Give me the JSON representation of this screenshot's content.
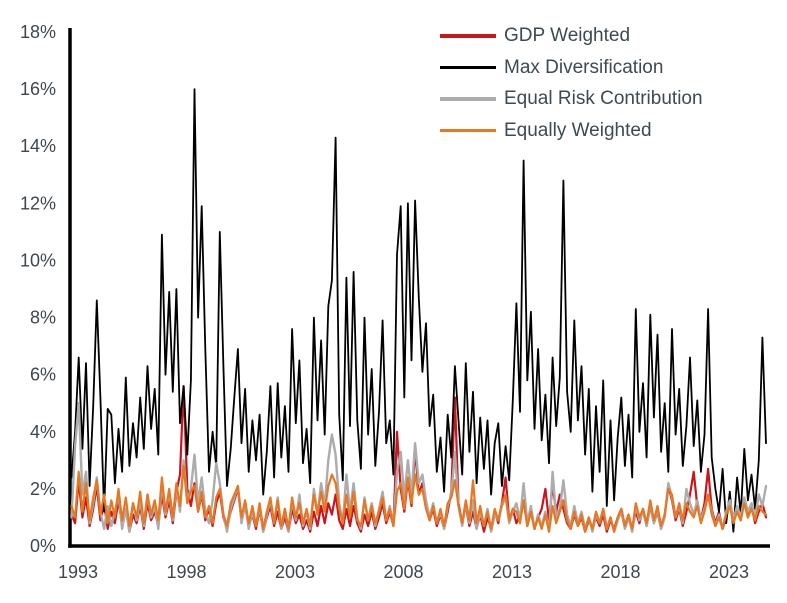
{
  "chart_data": {
    "type": "line",
    "title": "",
    "xlabel": "",
    "ylabel": "",
    "ylim": [
      0,
      18
    ],
    "y_unit": "%",
    "grid": false,
    "legend_position": "top-right",
    "y_tick_labels": [
      "0%",
      "2%",
      "4%",
      "6%",
      "8%",
      "10%",
      "12%",
      "14%",
      "16%",
      "18%"
    ],
    "y_tick_values": [
      0,
      2,
      4,
      6,
      8,
      10,
      12,
      14,
      16,
      18
    ],
    "x_tick_labels": [
      "1993",
      "1998",
      "2003",
      "2008",
      "2013",
      "2018",
      "2023"
    ],
    "x_tick_years": [
      1993,
      1998,
      2003,
      2008,
      2013,
      2018,
      2023
    ],
    "x_start_year": 1992.7,
    "x_end_year": 2024.7,
    "x_step_years": 0.1667,
    "points_per_series": 193,
    "series": [
      {
        "name": "GDP Weighted",
        "color": "#c9161d",
        "width": 2.2,
        "values": [
          1.1,
          0.8,
          2.3,
          1.0,
          1.7,
          0.7,
          1.3,
          2.1,
          0.9,
          1.5,
          0.6,
          1.2,
          0.8,
          1.6,
          0.7,
          1.3,
          0.5,
          1.1,
          0.8,
          1.4,
          0.6,
          1.5,
          0.9,
          1.2,
          0.7,
          1.8,
          1.0,
          1.6,
          0.8,
          1.9,
          2.5,
          5.6,
          2.0,
          1.4,
          2.2,
          1.2,
          1.8,
          0.9,
          1.3,
          0.7,
          1.5,
          1.9,
          1.0,
          0.6,
          1.2,
          1.6,
          2.0,
          0.9,
          1.4,
          0.7,
          1.1,
          0.6,
          1.3,
          0.5,
          1.0,
          1.4,
          0.7,
          1.2,
          0.6,
          1.0,
          0.5,
          1.3,
          0.8,
          1.1,
          0.6,
          0.9,
          0.5,
          1.2,
          0.7,
          1.4,
          0.8,
          1.5,
          1.1,
          1.8,
          0.9,
          0.6,
          1.3,
          0.7,
          1.4,
          0.8,
          0.5,
          1.1,
          0.7,
          1.2,
          0.6,
          1.0,
          1.5,
          0.8,
          1.2,
          0.7,
          4.0,
          2.0,
          1.2,
          2.3,
          1.4,
          3.4,
          1.8,
          2.2,
          1.5,
          0.9,
          1.3,
          0.7,
          1.1,
          0.6,
          1.2,
          1.9,
          5.2,
          1.5,
          0.8,
          1.4,
          0.7,
          1.2,
          0.6,
          1.1,
          0.5,
          1.0,
          0.6,
          1.2,
          0.8,
          1.5,
          2.4,
          0.9,
          1.3,
          0.8,
          1.1,
          1.6,
          0.7,
          1.2,
          0.6,
          1.0,
          1.3,
          2.0,
          0.9,
          2.1,
          1.2,
          1.8,
          1.3,
          0.8,
          0.6,
          1.1,
          0.7,
          1.0,
          0.5,
          0.9,
          0.6,
          1.0,
          0.7,
          1.1,
          0.5,
          0.9,
          0.6,
          1.0,
          1.3,
          0.7,
          1.1,
          0.6,
          1.2,
          0.8,
          1.3,
          0.7,
          1.4,
          0.8,
          1.2,
          0.6,
          1.1,
          2.1,
          1.6,
          0.9,
          1.3,
          0.7,
          1.2,
          1.8,
          2.6,
          1.4,
          0.9,
          1.5,
          2.7,
          1.3,
          0.8,
          1.2,
          0.6,
          1.0,
          1.5,
          0.8,
          1.3,
          0.9,
          1.6,
          1.0,
          1.4,
          0.8,
          1.2,
          1.5,
          1.0
        ]
      },
      {
        "name": "Max Diversification",
        "color": "#000000",
        "width": 1.8,
        "values": [
          2.4,
          4.0,
          6.6,
          3.4,
          6.4,
          2.1,
          4.9,
          8.6,
          5.2,
          1.2,
          4.8,
          4.6,
          2.2,
          4.1,
          2.6,
          5.9,
          2.8,
          4.3,
          3.1,
          5.2,
          3.4,
          6.3,
          4.1,
          5.5,
          3.2,
          10.9,
          6.0,
          8.9,
          5.4,
          9.0,
          4.3,
          5.6,
          3.2,
          5.8,
          16.0,
          8.0,
          11.9,
          6.9,
          2.6,
          4.0,
          2.8,
          11.0,
          6.3,
          2.1,
          3.4,
          5.2,
          6.9,
          3.6,
          5.5,
          2.6,
          4.4,
          3.0,
          4.6,
          1.8,
          3.3,
          5.6,
          2.4,
          5.7,
          3.1,
          4.9,
          2.6,
          7.6,
          4.3,
          6.5,
          2.9,
          4.1,
          2.2,
          8.0,
          4.4,
          7.2,
          3.9,
          8.4,
          9.3,
          14.3,
          4.6,
          2.3,
          9.4,
          4.2,
          9.6,
          4.4,
          2.7,
          8.0,
          3.9,
          6.2,
          2.8,
          4.7,
          7.9,
          3.6,
          4.4,
          2.5,
          10.2,
          11.9,
          5.2,
          12.0,
          6.5,
          12.1,
          8.7,
          6.1,
          7.8,
          4.2,
          5.3,
          2.6,
          3.8,
          1.9,
          4.6,
          3.1,
          6.3,
          4.4,
          2.5,
          6.4,
          3.3,
          5.4,
          2.2,
          4.5,
          2.7,
          4.4,
          1.8,
          3.6,
          4.3,
          2.1,
          3.5,
          2.3,
          5.1,
          8.5,
          4.7,
          13.5,
          5.8,
          8.2,
          4.1,
          6.9,
          3.7,
          5.3,
          2.9,
          6.6,
          4.2,
          5.9,
          12.8,
          5.4,
          4.0,
          7.9,
          4.4,
          6.3,
          3.2,
          5.5,
          1.9,
          4.9,
          2.6,
          5.8,
          1.4,
          4.4,
          1.6,
          3.8,
          5.2,
          2.8,
          4.6,
          2.4,
          8.3,
          4.0,
          5.7,
          3.1,
          8.1,
          4.5,
          7.4,
          3.3,
          5.0,
          2.6,
          7.6,
          3.9,
          5.5,
          2.8,
          4.2,
          6.6,
          3.5,
          5.1,
          2.6,
          3.9,
          8.3,
          3.1,
          2.0,
          1.2,
          2.7,
          0.8,
          1.9,
          0.5,
          2.4,
          1.1,
          3.4,
          1.6,
          2.5,
          1.3,
          3.0,
          7.3,
          3.6
        ]
      },
      {
        "name": "Equal Risk Contribution",
        "color": "#acacac",
        "width": 2.4,
        "values": [
          1.0,
          3.5,
          5.0,
          1.8,
          2.6,
          0.8,
          1.5,
          2.4,
          1.2,
          0.6,
          1.4,
          0.7,
          1.2,
          1.8,
          0.6,
          1.3,
          0.5,
          1.5,
          0.9,
          1.6,
          0.7,
          1.8,
          1.0,
          1.4,
          0.6,
          2.2,
          1.1,
          1.9,
          0.9,
          2.1,
          1.2,
          3.0,
          1.6,
          2.0,
          3.2,
          1.5,
          2.4,
          1.2,
          0.8,
          1.6,
          2.9,
          2.2,
          1.1,
          0.5,
          1.3,
          1.7,
          2.1,
          0.8,
          1.5,
          0.6,
          1.2,
          0.7,
          1.4,
          0.5,
          1.1,
          1.6,
          0.8,
          1.7,
          0.6,
          1.3,
          0.5,
          1.6,
          0.9,
          1.8,
          0.7,
          1.2,
          0.6,
          2.0,
          1.1,
          2.2,
          1.4,
          3.0,
          3.9,
          3.2,
          1.5,
          0.8,
          2.5,
          1.2,
          2.2,
          1.0,
          0.6,
          1.7,
          0.9,
          1.5,
          0.7,
          1.3,
          1.9,
          0.9,
          1.4,
          0.7,
          2.6,
          3.3,
          1.7,
          3.0,
          1.8,
          3.6,
          2.2,
          2.5,
          1.6,
          1.0,
          1.5,
          0.8,
          1.2,
          0.6,
          1.4,
          1.8,
          3.3,
          1.4,
          0.7,
          1.5,
          0.8,
          1.6,
          0.6,
          1.2,
          0.7,
          1.3,
          0.5,
          1.1,
          0.9,
          1.4,
          1.7,
          0.8,
          1.2,
          1.5,
          0.9,
          2.2,
          0.8,
          1.4,
          0.6,
          1.1,
          0.7,
          1.2,
          0.5,
          2.6,
          1.0,
          1.3,
          2.3,
          1.1,
          0.7,
          1.4,
          0.8,
          1.2,
          0.6,
          1.0,
          0.5,
          1.1,
          0.8,
          1.3,
          0.6,
          1.0,
          0.5,
          0.9,
          1.2,
          0.6,
          1.0,
          0.5,
          1.4,
          0.9,
          1.2,
          0.7,
          1.5,
          0.8,
          1.3,
          0.6,
          1.0,
          2.2,
          1.7,
          1.0,
          1.4,
          0.8,
          2.0,
          1.5,
          1.1,
          1.6,
          0.9,
          1.3,
          1.8,
          1.2,
          0.7,
          1.1,
          0.6,
          1.2,
          1.6,
          0.9,
          1.4,
          1.0,
          1.7,
          1.2,
          1.5,
          1.0,
          1.8,
          1.4,
          2.1
        ]
      },
      {
        "name": "Equally Weighted",
        "color": "#e87722",
        "width": 2.2,
        "values": [
          1.4,
          1.0,
          2.6,
          1.2,
          2.2,
          0.9,
          1.7,
          2.3,
          1.1,
          1.8,
          0.8,
          1.6,
          1.0,
          2.0,
          0.9,
          1.7,
          0.7,
          1.5,
          1.0,
          1.9,
          0.8,
          1.8,
          1.1,
          1.6,
          0.9,
          2.4,
          1.2,
          2.0,
          1.0,
          2.2,
          1.4,
          2.8,
          1.5,
          1.9,
          2.1,
          1.2,
          1.9,
          1.0,
          1.4,
          0.8,
          1.7,
          2.0,
          1.1,
          0.7,
          1.5,
          1.8,
          2.1,
          1.0,
          1.6,
          0.8,
          1.4,
          0.7,
          1.5,
          0.6,
          1.2,
          1.7,
          0.8,
          1.6,
          0.7,
          1.3,
          0.6,
          1.7,
          1.0,
          1.5,
          0.8,
          1.3,
          0.7,
          1.8,
          1.1,
          1.9,
          1.2,
          2.1,
          2.5,
          2.2,
          1.3,
          0.8,
          1.8,
          1.0,
          1.9,
          0.9,
          0.7,
          1.6,
          0.9,
          1.4,
          0.8,
          1.2,
          1.7,
          0.9,
          1.3,
          0.7,
          1.9,
          2.2,
          1.3,
          2.4,
          1.5,
          2.5,
          1.8,
          2.0,
          1.3,
          0.9,
          1.4,
          0.8,
          1.3,
          0.7,
          1.5,
          1.7,
          2.3,
          1.4,
          0.8,
          1.6,
          0.9,
          2.3,
          0.8,
          1.4,
          0.7,
          1.2,
          0.6,
          1.3,
          0.9,
          1.5,
          1.8,
          0.9,
          1.3,
          1.2,
          0.8,
          1.6,
          0.7,
          1.2,
          0.6,
          1.0,
          0.6,
          1.1,
          0.5,
          1.4,
          0.8,
          1.2,
          1.6,
          0.9,
          0.6,
          1.2,
          0.7,
          1.1,
          0.5,
          1.0,
          0.6,
          1.2,
          0.8,
          1.3,
          0.6,
          1.0,
          0.5,
          1.0,
          1.3,
          0.7,
          1.1,
          0.6,
          1.5,
          1.0,
          1.3,
          0.8,
          1.6,
          0.9,
          1.4,
          0.7,
          1.1,
          2.0,
          1.8,
          1.0,
          1.5,
          0.9,
          1.5,
          1.2,
          1.0,
          1.4,
          0.8,
          1.2,
          1.8,
          1.1,
          0.7,
          1.0,
          0.6,
          1.1,
          1.4,
          0.8,
          1.2,
          0.9,
          1.5,
          1.0,
          1.3,
          0.9,
          1.4,
          1.2,
          1.1
        ]
      }
    ]
  }
}
